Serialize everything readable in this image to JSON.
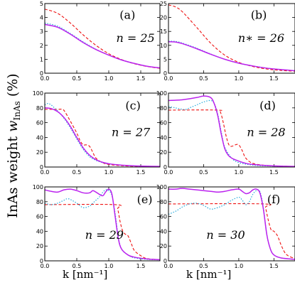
{
  "figure": {
    "ylabel_prefix": "InAs weight ",
    "ylabel_symbol": "w",
    "ylabel_sub": "InAs",
    "ylabel_unit": " (%)",
    "xlabel_left": "k [nm⁻¹]",
    "xlabel_right": "k [nm⁻¹]"
  },
  "style": {
    "solid_color": "#bb22ee",
    "dotted_color": "#22aadd",
    "dashed_color": "#ee1111"
  },
  "chart_data": [
    {
      "type": "line",
      "panel": "(a)",
      "annotation": "n = 25",
      "xlim": [
        0,
        1.8
      ],
      "ylim": [
        0,
        5
      ],
      "xticks": [
        0,
        0.5,
        1.0,
        1.5
      ],
      "xtick_labels": [
        "0.0",
        "0.5",
        "1.0",
        "1.5"
      ],
      "yticks": [
        0,
        1,
        2,
        3,
        4,
        5
      ],
      "ytick_labels": [
        "0",
        "1",
        "2",
        "3",
        "4",
        "5"
      ],
      "series": [
        {
          "style": "solid",
          "x": [
            0,
            0.2,
            0.4,
            0.6,
            0.8,
            1.0,
            1.2,
            1.4,
            1.6,
            1.8
          ],
          "y": [
            3.5,
            3.3,
            2.8,
            2.2,
            1.7,
            1.3,
            0.95,
            0.7,
            0.5,
            0.38
          ]
        },
        {
          "style": "dotted",
          "x": [
            0,
            0.2,
            0.4,
            0.6,
            0.8,
            1.0,
            1.2,
            1.4,
            1.6,
            1.8
          ],
          "y": [
            3.6,
            3.38,
            2.85,
            2.25,
            1.72,
            1.3,
            0.95,
            0.7,
            0.5,
            0.38
          ]
        },
        {
          "style": "dashed",
          "x": [
            0,
            0.2,
            0.4,
            0.6,
            0.8,
            1.0,
            1.2,
            1.4,
            1.6,
            1.8
          ],
          "y": [
            4.6,
            4.3,
            3.6,
            2.75,
            2.0,
            1.4,
            0.98,
            0.68,
            0.48,
            0.35
          ]
        }
      ]
    },
    {
      "type": "line",
      "panel": "(b)",
      "annotation": "n∗ = 26",
      "xlim": [
        0,
        1.8
      ],
      "ylim": [
        0,
        25
      ],
      "xticks": [
        0,
        0.5,
        1.0,
        1.5
      ],
      "xtick_labels": [
        "0.0",
        "0.5",
        "1.0",
        "1.5"
      ],
      "yticks": [
        0,
        5,
        10,
        15,
        20,
        25
      ],
      "ytick_labels": [
        "0",
        "5",
        "10",
        "15",
        "20",
        "25"
      ],
      "series": [
        {
          "style": "solid",
          "x": [
            0,
            0.1,
            0.2,
            0.4,
            0.6,
            0.8,
            1.0,
            1.2,
            1.4,
            1.6,
            1.8
          ],
          "y": [
            11.3,
            11.2,
            10.6,
            8.8,
            6.8,
            5.0,
            3.6,
            2.6,
            1.8,
            1.3,
            0.9
          ]
        },
        {
          "style": "dotted",
          "x": [
            0,
            0.1,
            0.2,
            0.4,
            0.6,
            0.8,
            1.0,
            1.2,
            1.4,
            1.6,
            1.8
          ],
          "y": [
            11.5,
            11.4,
            10.8,
            9.0,
            6.9,
            5.0,
            3.6,
            2.6,
            1.8,
            1.3,
            0.9
          ]
        },
        {
          "style": "dashed",
          "x": [
            0,
            0.1,
            0.2,
            0.4,
            0.6,
            0.8,
            1.0,
            1.2,
            1.4,
            1.6,
            1.8
          ],
          "y": [
            24.5,
            23.8,
            22.0,
            16.5,
            10.8,
            6.5,
            3.9,
            2.4,
            1.5,
            1.0,
            0.7
          ]
        }
      ]
    },
    {
      "type": "line",
      "panel": "(c)",
      "annotation": "n = 27",
      "xlim": [
        0,
        1.8
      ],
      "ylim": [
        0,
        100
      ],
      "xticks": [
        0,
        0.5,
        1.0,
        1.5
      ],
      "xtick_labels": [
        "0.0",
        "0.5",
        "1.0",
        "1.5"
      ],
      "yticks": [
        0,
        20,
        40,
        60,
        80,
        100
      ],
      "ytick_labels": [
        "0",
        "20",
        "40",
        "60",
        "80",
        "100"
      ],
      "series": [
        {
          "style": "solid",
          "x": [
            0,
            0.1,
            0.2,
            0.3,
            0.4,
            0.5,
            0.6,
            0.7,
            0.8,
            0.9,
            1.0,
            1.1,
            1.2,
            1.4,
            1.6,
            1.8
          ],
          "y": [
            80,
            79,
            75,
            67,
            55,
            40,
            26,
            16,
            10,
            6.5,
            4.5,
            3.3,
            2.5,
            1.6,
            1.1,
            0.8
          ]
        },
        {
          "style": "dotted",
          "x": [
            0,
            0.05,
            0.1,
            0.15,
            0.2,
            0.3,
            0.4,
            0.5,
            0.6,
            0.7,
            0.8,
            0.9,
            1.0,
            1.2,
            1.4,
            1.6,
            1.8
          ],
          "y": [
            84,
            86,
            84,
            80,
            76,
            66,
            53,
            38,
            24,
            14,
            9,
            6,
            4.2,
            2.4,
            1.5,
            1.0,
            0.7
          ]
        },
        {
          "style": "dashed",
          "x": [
            0,
            0.1,
            0.2,
            0.28,
            0.32,
            0.4,
            0.5,
            0.55,
            0.6,
            0.65,
            0.7,
            0.75,
            0.8,
            0.9,
            1.0,
            1.2,
            1.4,
            1.6,
            1.8
          ],
          "y": [
            78,
            78,
            78,
            78,
            74,
            62,
            46,
            36,
            30,
            30,
            28,
            20,
            12,
            6,
            3.5,
            1.8,
            1.1,
            0.7,
            0.5
          ]
        }
      ]
    },
    {
      "type": "line",
      "panel": "(d)",
      "annotation": "n = 28",
      "xlim": [
        0,
        1.8
      ],
      "ylim": [
        0,
        100
      ],
      "xticks": [
        0,
        0.5,
        1.0,
        1.5
      ],
      "xtick_labels": [
        "0.0",
        "0.5",
        "1.0",
        "1.5"
      ],
      "yticks": [
        0,
        20,
        40,
        60,
        80,
        100
      ],
      "ytick_labels": [
        "0",
        "20",
        "40",
        "60",
        "80",
        "100"
      ],
      "series": [
        {
          "style": "solid",
          "x": [
            0,
            0.2,
            0.4,
            0.5,
            0.6,
            0.65,
            0.7,
            0.75,
            0.8,
            0.85,
            0.9,
            1.0,
            1.1,
            1.2,
            1.4,
            1.6,
            1.8
          ],
          "y": [
            90,
            91,
            94,
            96,
            94,
            86,
            70,
            45,
            25,
            16,
            12,
            8,
            5,
            3.5,
            2,
            1.2,
            0.8
          ]
        },
        {
          "style": "dotted",
          "x": [
            0,
            0.1,
            0.2,
            0.25,
            0.3,
            0.4,
            0.5,
            0.6,
            0.65,
            0.7,
            0.75,
            0.8,
            0.9,
            1.0,
            1.2,
            1.4,
            1.6,
            1.8
          ],
          "y": [
            82,
            80,
            78,
            78,
            80,
            84,
            88,
            90,
            86,
            72,
            48,
            27,
            12,
            6,
            2.5,
            1.5,
            1.0,
            0.7
          ]
        },
        {
          "style": "dashed",
          "x": [
            0,
            0.7,
            0.74,
            0.78,
            0.82,
            0.86,
            0.9,
            0.95,
            1.0,
            1.05,
            1.1,
            1.2,
            1.4,
            1.6,
            1.8
          ],
          "y": [
            77,
            77,
            74,
            60,
            42,
            30,
            28,
            30,
            30,
            22,
            12,
            5,
            2,
            1.2,
            0.8
          ]
        }
      ]
    },
    {
      "type": "line",
      "panel": "(e)",
      "annotation": "n = 29",
      "xlim": [
        0,
        1.8
      ],
      "ylim": [
        0,
        100
      ],
      "xticks": [
        0,
        0.5,
        1.0,
        1.5
      ],
      "xtick_labels": [
        "0.0",
        "0.5",
        "1.0",
        "1.5"
      ],
      "yticks": [
        0,
        20,
        40,
        60,
        80,
        100
      ],
      "ytick_labels": [
        "0",
        "20",
        "40",
        "60",
        "80",
        "100"
      ],
      "series": [
        {
          "style": "solid",
          "x": [
            0,
            0.1,
            0.2,
            0.3,
            0.4,
            0.5,
            0.6,
            0.7,
            0.75,
            0.8,
            0.9,
            0.95,
            1.0,
            1.05,
            1.1,
            1.15,
            1.2,
            1.3,
            1.4,
            1.6,
            1.8
          ],
          "y": [
            96,
            94,
            93,
            96,
            97,
            95,
            92,
            92,
            95,
            93,
            88,
            93,
            97,
            90,
            60,
            30,
            16,
            8,
            5,
            2.5,
            1.5
          ]
        },
        {
          "style": "dotted",
          "x": [
            0,
            0.1,
            0.2,
            0.3,
            0.35,
            0.4,
            0.5,
            0.6,
            0.7,
            0.75,
            0.8,
            0.85,
            0.9,
            0.95,
            1.0,
            1.05,
            1.1,
            1.15,
            1.2,
            1.3,
            1.4,
            1.6,
            1.8
          ],
          "y": [
            78,
            76,
            78,
            82,
            84,
            83,
            78,
            72,
            74,
            78,
            82,
            86,
            92,
            96,
            95,
            88,
            64,
            32,
            16,
            8,
            4,
            2,
            1.3
          ]
        },
        {
          "style": "dashed",
          "x": [
            0,
            1.1,
            1.14,
            1.18,
            1.22,
            1.26,
            1.3,
            1.35,
            1.4,
            1.5,
            1.6,
            1.8
          ],
          "y": [
            76,
            76,
            70,
            52,
            40,
            36,
            34,
            24,
            14,
            7,
            3,
            1.5
          ]
        }
      ]
    },
    {
      "type": "line",
      "panel": "(f)",
      "annotation": "n = 30",
      "xlim": [
        0,
        1.8
      ],
      "ylim": [
        0,
        100
      ],
      "xticks": [
        0,
        0.5,
        1.0,
        1.5
      ],
      "xtick_labels": [
        "0.0",
        "0.5",
        "1.0",
        "1.5"
      ],
      "yticks": [
        0,
        20,
        40,
        60,
        80,
        100
      ],
      "ytick_labels": [
        "0",
        "20",
        "40",
        "60",
        "80",
        "100"
      ],
      "series": [
        {
          "style": "solid",
          "x": [
            0,
            0.1,
            0.2,
            0.3,
            0.4,
            0.5,
            0.6,
            0.7,
            0.8,
            0.9,
            1.0,
            1.05,
            1.1,
            1.15,
            1.2,
            1.25,
            1.3,
            1.35,
            1.4,
            1.45,
            1.5,
            1.6,
            1.8
          ],
          "y": [
            97,
            97,
            98,
            97,
            96,
            95,
            94,
            93,
            94,
            96,
            97,
            94,
            91,
            92,
            96,
            97,
            92,
            70,
            35,
            16,
            8,
            4,
            2
          ]
        },
        {
          "style": "dotted",
          "x": [
            0,
            0.1,
            0.2,
            0.3,
            0.4,
            0.5,
            0.6,
            0.7,
            0.8,
            0.9,
            1.0,
            1.05,
            1.1,
            1.15,
            1.2,
            1.25,
            1.3,
            1.35,
            1.4,
            1.45,
            1.5,
            1.6,
            1.8
          ],
          "y": [
            63,
            67,
            73,
            77,
            78,
            75,
            70,
            72,
            76,
            82,
            86,
            82,
            76,
            80,
            90,
            95,
            94,
            72,
            35,
            16,
            8,
            4,
            2
          ]
        },
        {
          "style": "dashed",
          "x": [
            0,
            1.35,
            1.38,
            1.42,
            1.46,
            1.5,
            1.55,
            1.6,
            1.65,
            1.7,
            1.8
          ],
          "y": [
            77,
            77,
            72,
            55,
            42,
            40,
            34,
            22,
            12,
            7,
            3
          ]
        }
      ]
    }
  ]
}
